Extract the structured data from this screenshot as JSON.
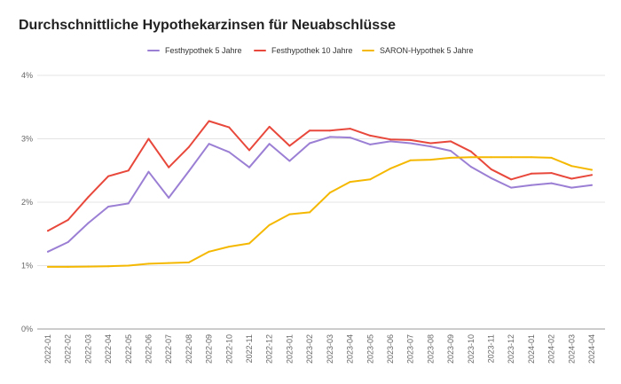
{
  "chart_data": {
    "type": "line",
    "title": "Durchschnittliche Hypothekarzinsen für Neuabschlüsse",
    "xlabel": "",
    "ylabel": "",
    "ylim": [
      0,
      4
    ],
    "y_ticks": [
      0,
      1,
      2,
      3,
      4
    ],
    "y_tick_labels": [
      "0%",
      "1%",
      "2%",
      "3%",
      "4%"
    ],
    "grid": "horizontal",
    "legend_position": "top-center",
    "categories": [
      "2022-01",
      "2022-02",
      "2022-03",
      "2022-04",
      "2022-05",
      "2022-06",
      "2022-07",
      "2022-08",
      "2022-09",
      "2022-10",
      "2022-11",
      "2022-12",
      "2023-01",
      "2023-02",
      "2023-03",
      "2023-04",
      "2023-05",
      "2023-06",
      "2023-07",
      "2023-08",
      "2023-09",
      "2023-10",
      "2023-11",
      "2023-12",
      "2024-01",
      "2024-02",
      "2024-03",
      "2024-04"
    ],
    "series": [
      {
        "name": "Festhypothek 5 Jahre",
        "color": "#9b7fd4",
        "values": [
          1.22,
          1.37,
          1.67,
          1.93,
          1.98,
          2.48,
          2.07,
          2.49,
          2.92,
          2.79,
          2.55,
          2.92,
          2.65,
          2.93,
          3.03,
          3.02,
          2.91,
          2.96,
          2.93,
          2.88,
          2.81,
          2.56,
          2.38,
          2.23,
          2.27,
          2.3,
          2.23,
          2.27
        ]
      },
      {
        "name": "Festhypothek 10 Jahre",
        "color": "#e8483b",
        "values": [
          1.55,
          1.72,
          2.08,
          2.41,
          2.5,
          3.0,
          2.55,
          2.87,
          3.28,
          3.18,
          2.82,
          3.19,
          2.89,
          3.13,
          3.13,
          3.16,
          3.05,
          2.99,
          2.98,
          2.93,
          2.96,
          2.8,
          2.52,
          2.36,
          2.45,
          2.46,
          2.37,
          2.43
        ]
      },
      {
        "name": "SARON-Hypothek 5 Jahre",
        "color": "#f5b800",
        "values": [
          0.98,
          0.98,
          0.985,
          0.99,
          1.0,
          1.03,
          1.04,
          1.05,
          1.22,
          1.3,
          1.35,
          1.64,
          1.81,
          1.84,
          2.15,
          2.32,
          2.36,
          2.53,
          2.66,
          2.67,
          2.7,
          2.71,
          2.71,
          2.71,
          2.71,
          2.7,
          2.57,
          2.51
        ]
      }
    ]
  }
}
